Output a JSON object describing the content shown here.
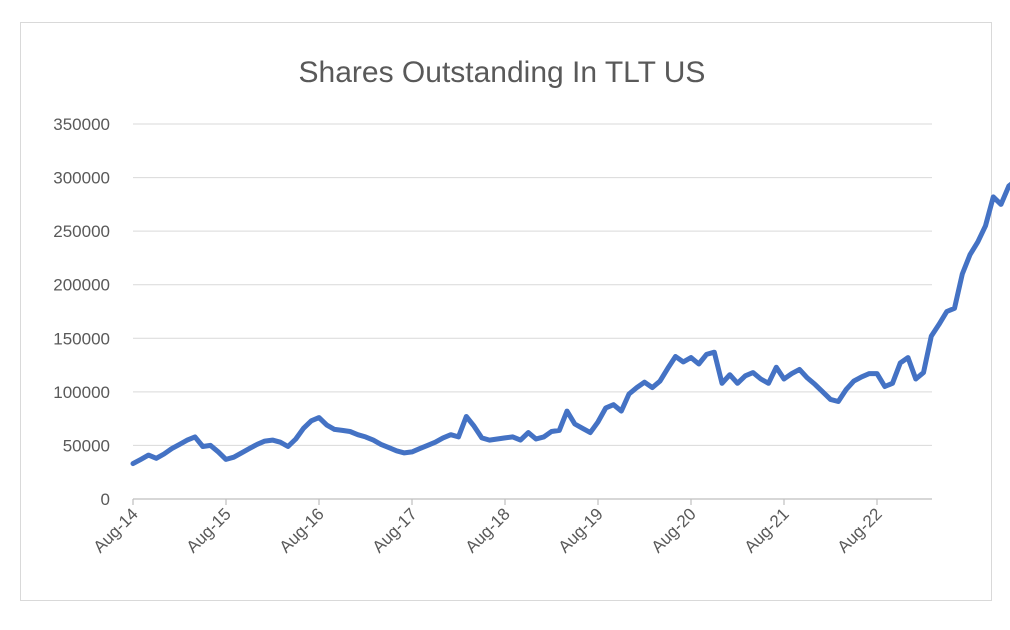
{
  "chart_data": {
    "type": "line",
    "title": "Shares Outstanding In TLT US",
    "xlabel": "",
    "ylabel": "",
    "ylim": [
      0,
      350000
    ],
    "yticks": [
      0,
      50000,
      100000,
      150000,
      200000,
      250000,
      300000,
      350000
    ],
    "xticks": [
      "Aug-14",
      "Aug-15",
      "Aug-16",
      "Aug-17",
      "Aug-18",
      "Aug-19",
      "Aug-20",
      "Aug-21",
      "Aug-22"
    ],
    "grid": true,
    "legend": "none",
    "series": [
      {
        "color": "#4472c4",
        "points": [
          [
            "2014-08",
            33000
          ],
          [
            "2014-09",
            37000
          ],
          [
            "2014-10",
            41000
          ],
          [
            "2014-11",
            38000
          ],
          [
            "2014-12",
            42000
          ],
          [
            "2015-01",
            47000
          ],
          [
            "2015-02",
            51000
          ],
          [
            "2015-03",
            55000
          ],
          [
            "2015-04",
            58000
          ],
          [
            "2015-05",
            49000
          ],
          [
            "2015-06",
            50000
          ],
          [
            "2015-07",
            44000
          ],
          [
            "2015-08",
            37000
          ],
          [
            "2015-09",
            39000
          ],
          [
            "2015-10",
            43000
          ],
          [
            "2015-11",
            47000
          ],
          [
            "2015-12",
            51000
          ],
          [
            "2016-01",
            54000
          ],
          [
            "2016-02",
            55000
          ],
          [
            "2016-03",
            53000
          ],
          [
            "2016-04",
            49000
          ],
          [
            "2016-05",
            56000
          ],
          [
            "2016-06",
            66000
          ],
          [
            "2016-07",
            73000
          ],
          [
            "2016-08",
            76000
          ],
          [
            "2016-09",
            69000
          ],
          [
            "2016-10",
            65000
          ],
          [
            "2016-11",
            64000
          ],
          [
            "2016-12",
            63000
          ],
          [
            "2017-01",
            60000
          ],
          [
            "2017-02",
            58000
          ],
          [
            "2017-03",
            55000
          ],
          [
            "2017-04",
            51000
          ],
          [
            "2017-05",
            48000
          ],
          [
            "2017-06",
            45000
          ],
          [
            "2017-07",
            43000
          ],
          [
            "2017-08",
            44000
          ],
          [
            "2017-09",
            47000
          ],
          [
            "2017-10",
            50000
          ],
          [
            "2017-11",
            53000
          ],
          [
            "2017-12",
            57000
          ],
          [
            "2018-01",
            60000
          ],
          [
            "2018-02",
            58000
          ],
          [
            "2018-03",
            77000
          ],
          [
            "2018-04",
            68000
          ],
          [
            "2018-05",
            57000
          ],
          [
            "2018-06",
            55000
          ],
          [
            "2018-07",
            56000
          ],
          [
            "2018-08",
            57000
          ],
          [
            "2018-09",
            58000
          ],
          [
            "2018-10",
            55000
          ],
          [
            "2018-11",
            62000
          ],
          [
            "2018-12",
            56000
          ],
          [
            "2019-01",
            58000
          ],
          [
            "2019-02",
            63000
          ],
          [
            "2019-03",
            64000
          ],
          [
            "2019-04",
            82000
          ],
          [
            "2019-05",
            70000
          ],
          [
            "2019-06",
            66000
          ],
          [
            "2019-07",
            62000
          ],
          [
            "2019-08",
            72000
          ],
          [
            "2019-09",
            85000
          ],
          [
            "2019-10",
            88000
          ],
          [
            "2019-11",
            82000
          ],
          [
            "2019-12",
            98000
          ],
          [
            "2020-01",
            104000
          ],
          [
            "2020-02",
            109000
          ],
          [
            "2020-03",
            104000
          ],
          [
            "2020-04",
            110000
          ],
          [
            "2020-05",
            122000
          ],
          [
            "2020-06",
            133000
          ],
          [
            "2020-07",
            128000
          ],
          [
            "2020-08",
            132000
          ],
          [
            "2020-09",
            126000
          ],
          [
            "2020-10",
            135000
          ],
          [
            "2020-11",
            137000
          ],
          [
            "2020-12",
            108000
          ],
          [
            "2021-01",
            116000
          ],
          [
            "2021-02",
            108000
          ],
          [
            "2021-03",
            115000
          ],
          [
            "2021-04",
            118000
          ],
          [
            "2021-05",
            112000
          ],
          [
            "2021-06",
            108000
          ],
          [
            "2021-07",
            123000
          ],
          [
            "2021-08",
            112000
          ],
          [
            "2021-09",
            117000
          ],
          [
            "2021-10",
            121000
          ],
          [
            "2021-11",
            113000
          ],
          [
            "2021-12",
            107000
          ],
          [
            "2022-01",
            100000
          ],
          [
            "2022-02",
            93000
          ],
          [
            "2022-03",
            91000
          ],
          [
            "2022-04",
            102000
          ],
          [
            "2022-05",
            110000
          ],
          [
            "2022-06",
            114000
          ],
          [
            "2022-07",
            117000
          ],
          [
            "2022-08",
            117000
          ],
          [
            "2022-09",
            105000
          ],
          [
            "2022-10",
            108000
          ],
          [
            "2022-11",
            127000
          ],
          [
            "2022-12",
            132000
          ],
          [
            "2023-01",
            112000
          ],
          [
            "2023-02",
            118000
          ],
          [
            "2023-03",
            152000
          ],
          [
            "2023-04",
            163000
          ],
          [
            "2023-05",
            175000
          ],
          [
            "2023-06",
            178000
          ],
          [
            "2023-07",
            210000
          ],
          [
            "2023-08",
            228000
          ],
          [
            "2023-09",
            240000
          ],
          [
            "2023-10",
            255000
          ],
          [
            "2023-11",
            282000
          ],
          [
            "2023-12",
            275000
          ],
          [
            "2024-01",
            292000
          ],
          [
            "2024-02",
            298000
          ],
          [
            "2024-03",
            308000
          ],
          [
            "2024-04",
            316000
          ]
        ]
      }
    ]
  }
}
